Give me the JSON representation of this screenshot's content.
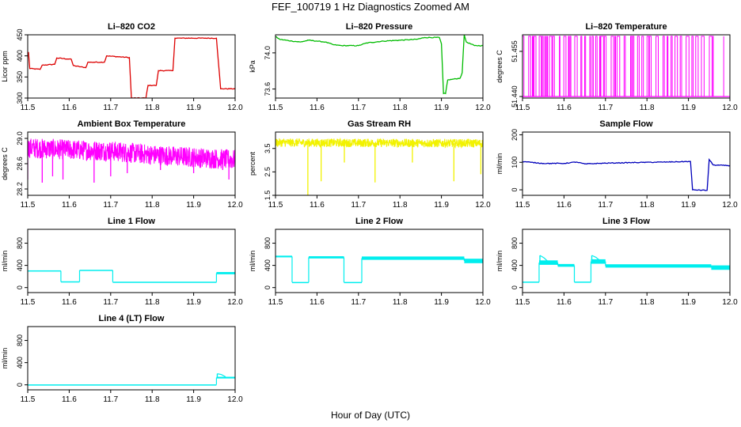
{
  "figure": {
    "title": "FEF_100719  1 Hz Diagnostics Zoomed AM",
    "xlabel": "Hour of Day (UTC)"
  },
  "colors": {
    "red": "#dd0000",
    "green": "#00bb00",
    "magenta": "#ff00ff",
    "yellow": "#f2f200",
    "blue": "#0000bb",
    "cyan": "#00eeee"
  },
  "chart_data": [
    {
      "id": "co2",
      "type": "line",
      "title": "Li–820 CO2",
      "ylabel": "Licor ppm",
      "color": "#dd0000",
      "xlim": [
        11.5,
        12.0
      ],
      "ylim": [
        300,
        450
      ],
      "xticks": [
        "11.5",
        "11.6",
        "11.7",
        "11.8",
        "11.9",
        "12.0"
      ],
      "yticks": [
        {
          "v": 300,
          "t": "300"
        },
        {
          "v": 350,
          "t": "350"
        },
        {
          "v": 400,
          "t": "400"
        },
        {
          "v": 450,
          "t": "450"
        }
      ],
      "segments": [
        [
          11.5,
          408
        ],
        [
          11.502,
          408
        ],
        [
          11.505,
          370
        ],
        [
          11.53,
          368
        ],
        [
          11.535,
          378
        ],
        [
          11.565,
          380
        ],
        [
          11.57,
          395
        ],
        [
          11.605,
          392
        ],
        [
          11.61,
          377
        ],
        [
          11.64,
          372
        ],
        [
          11.645,
          385
        ],
        [
          11.685,
          385
        ],
        [
          11.69,
          400
        ],
        [
          11.745,
          396
        ],
        [
          11.75,
          300
        ],
        [
          11.785,
          300
        ],
        [
          11.79,
          330
        ],
        [
          11.81,
          330
        ],
        [
          11.815,
          365
        ],
        [
          11.85,
          365
        ],
        [
          11.855,
          442
        ],
        [
          11.955,
          442
        ],
        [
          11.965,
          322
        ],
        [
          12.0,
          322
        ]
      ]
    },
    {
      "id": "pressure",
      "type": "line",
      "title": "Li–820 Pressure",
      "ylabel": "kPa",
      "color": "#00bb00",
      "xlim": [
        11.5,
        12.0
      ],
      "ylim": [
        73.5,
        74.2
      ],
      "xticks": [
        "11.5",
        "11.6",
        "11.7",
        "11.8",
        "11.9",
        "12.0"
      ],
      "yticks": [
        {
          "v": 73.6,
          "t": "73.6"
        },
        {
          "v": 74.0,
          "t": "74.0"
        }
      ],
      "segments": [
        [
          11.5,
          74.18
        ],
        [
          11.51,
          74.15
        ],
        [
          11.54,
          74.13
        ],
        [
          11.56,
          74.12
        ],
        [
          11.58,
          74.14
        ],
        [
          11.6,
          74.13
        ],
        [
          11.62,
          74.12
        ],
        [
          11.64,
          74.09
        ],
        [
          11.66,
          74.08
        ],
        [
          11.7,
          74.08
        ],
        [
          11.72,
          74.11
        ],
        [
          11.76,
          74.13
        ],
        [
          11.8,
          74.14
        ],
        [
          11.84,
          74.15
        ],
        [
          11.86,
          74.17
        ],
        [
          11.895,
          74.17
        ],
        [
          11.9,
          74.1
        ],
        [
          11.905,
          73.55
        ],
        [
          11.91,
          73.55
        ],
        [
          11.915,
          73.7
        ],
        [
          11.945,
          73.72
        ],
        [
          11.95,
          73.78
        ],
        [
          11.955,
          74.2
        ],
        [
          11.96,
          74.12
        ],
        [
          11.98,
          74.08
        ],
        [
          12.0,
          74.08
        ]
      ]
    },
    {
      "id": "licor-temp",
      "type": "spikes",
      "title": "Li–820 Temperature",
      "ylabel": "degrees C",
      "color": "#ff00ff",
      "xlim": [
        11.5,
        12.0
      ],
      "ylim": [
        51.4395,
        51.4605
      ],
      "xticks": [
        "11.5",
        "11.6",
        "11.7",
        "11.8",
        "11.9",
        "12.0"
      ],
      "yticks": [
        {
          "v": 51.44,
          "t": "51.440"
        },
        {
          "v": 51.455,
          "t": "51.455"
        }
      ],
      "base": 51.44,
      "top": 51.46,
      "pattern_range": [
        11.5,
        11.96
      ],
      "extra_spikes": [
        11.985
      ]
    },
    {
      "id": "ambient-temp",
      "type": "noise",
      "title": "Ambient Box Temperature",
      "ylabel": "degrees C",
      "color": "#ff00ff",
      "xlim": [
        11.5,
        12.0
      ],
      "ylim": [
        28.1,
        29.1
      ],
      "xticks": [
        "11.5",
        "11.6",
        "11.7",
        "11.8",
        "11.9",
        "12.0"
      ],
      "yticks": [
        {
          "v": 28.2,
          "t": "28.2"
        },
        {
          "v": 28.6,
          "t": "28.6"
        },
        {
          "v": 29.0,
          "t": "29.0"
        }
      ],
      "trend": [
        [
          11.5,
          28.85
        ],
        [
          11.6,
          28.82
        ],
        [
          11.7,
          28.8
        ],
        [
          11.8,
          28.74
        ],
        [
          11.9,
          28.7
        ],
        [
          12.0,
          28.66
        ]
      ],
      "amp": 0.16,
      "dips": [
        [
          11.535,
          28.3
        ],
        [
          11.56,
          28.4
        ],
        [
          11.585,
          28.35
        ],
        [
          11.66,
          28.3
        ],
        [
          11.7,
          28.4
        ],
        [
          11.74,
          28.45
        ],
        [
          11.82,
          28.5
        ],
        [
          11.9,
          28.45
        ],
        [
          11.97,
          28.5
        ],
        [
          11.985,
          28.35
        ],
        [
          11.5,
          28.35
        ]
      ]
    },
    {
      "id": "rh",
      "type": "noise",
      "title": "Gas Stream RH",
      "ylabel": "percent",
      "color": "#f2f200",
      "xlim": [
        11.5,
        12.0
      ],
      "ylim": [
        1.5,
        4.2
      ],
      "xticks": [
        "11.5",
        "11.6",
        "11.7",
        "11.8",
        "11.9",
        "12.0"
      ],
      "yticks": [
        {
          "v": 1.5,
          "t": "1.5"
        },
        {
          "v": 2.5,
          "t": "2.5"
        },
        {
          "v": 3.5,
          "t": "3.5"
        }
      ],
      "trend": [
        [
          11.5,
          3.75
        ],
        [
          12.0,
          3.72
        ]
      ],
      "amp": 0.18,
      "dips": [
        [
          11.578,
          1.5
        ],
        [
          11.61,
          2.1
        ],
        [
          11.666,
          2.9
        ],
        [
          11.74,
          2.05
        ],
        [
          11.93,
          2.1
        ],
        [
          11.83,
          2.9
        ],
        [
          11.995,
          2.4
        ]
      ]
    },
    {
      "id": "sample-flow",
      "type": "line",
      "title": "Sample Flow",
      "ylabel": "ml/min",
      "color": "#0000bb",
      "xlim": [
        11.5,
        12.0
      ],
      "ylim": [
        -20,
        210
      ],
      "xticks": [
        "11.5",
        "11.6",
        "11.7",
        "11.8",
        "11.9",
        "12.0"
      ],
      "yticks": [
        {
          "v": 0,
          "t": "0"
        },
        {
          "v": 100,
          "t": "100"
        },
        {
          "v": 200,
          "t": "200"
        }
      ],
      "segments": [
        [
          11.5,
          103
        ],
        [
          11.52,
          100
        ],
        [
          11.55,
          96
        ],
        [
          11.6,
          96
        ],
        [
          11.63,
          101
        ],
        [
          11.65,
          94
        ],
        [
          11.7,
          97
        ],
        [
          11.8,
          100
        ],
        [
          11.85,
          101
        ],
        [
          11.905,
          103
        ],
        [
          11.91,
          0
        ],
        [
          11.945,
          -2
        ],
        [
          11.95,
          110
        ],
        [
          11.96,
          90
        ],
        [
          12.0,
          88
        ]
      ]
    },
    {
      "id": "line1-flow",
      "type": "band",
      "title": "Line 1 Flow",
      "ylabel": "ml/min",
      "color": "#00eeee",
      "xlim": [
        11.5,
        12.0
      ],
      "ylim": [
        -90,
        1050
      ],
      "xticks": [
        "11.5",
        "11.6",
        "11.7",
        "11.8",
        "11.9",
        "12.0"
      ],
      "yticks": [
        {
          "v": 0,
          "t": "0"
        },
        {
          "v": 400,
          "t": "400"
        },
        {
          "v": 800,
          "t": "800"
        }
      ],
      "steps": [
        [
          11.5,
          11.58,
          300,
          10
        ],
        [
          11.58,
          11.625,
          105,
          8
        ],
        [
          11.625,
          11.705,
          310,
          10
        ],
        [
          11.705,
          11.955,
          100,
          6
        ],
        [
          11.955,
          12.0,
          260,
          20
        ]
      ]
    },
    {
      "id": "line2-flow",
      "type": "band",
      "title": "Line 2 Flow",
      "ylabel": "ml/min",
      "color": "#00eeee",
      "xlim": [
        11.5,
        12.0
      ],
      "ylim": [
        -90,
        1050
      ],
      "xticks": [
        "11.5",
        "11.6",
        "11.7",
        "11.8",
        "11.9",
        "12.0"
      ],
      "yticks": [
        {
          "v": 0,
          "t": "0"
        },
        {
          "v": 400,
          "t": "400"
        },
        {
          "v": 800,
          "t": "800"
        }
      ],
      "steps": [
        [
          11.5,
          11.54,
          560,
          15
        ],
        [
          11.54,
          11.58,
          95,
          6
        ],
        [
          11.58,
          11.665,
          545,
          20
        ],
        [
          11.665,
          11.708,
          95,
          6
        ],
        [
          11.708,
          11.955,
          530,
          30
        ],
        [
          11.955,
          12.0,
          480,
          40
        ]
      ]
    },
    {
      "id": "line3-flow",
      "type": "band",
      "title": "Line 3 Flow",
      "ylabel": "ml/min",
      "color": "#00eeee",
      "xlim": [
        11.5,
        12.0
      ],
      "ylim": [
        -90,
        1050
      ],
      "xticks": [
        "11.5",
        "11.6",
        "11.7",
        "11.8",
        "11.9",
        "12.0"
      ],
      "yticks": [
        {
          "v": 0,
          "t": "0"
        },
        {
          "v": 400,
          "t": "400"
        },
        {
          "v": 800,
          "t": "800"
        }
      ],
      "steps": [
        [
          11.5,
          11.54,
          100,
          8
        ],
        [
          11.54,
          11.585,
          450,
          40
        ],
        [
          11.585,
          11.625,
          400,
          25
        ],
        [
          11.625,
          11.665,
          100,
          8
        ],
        [
          11.665,
          11.7,
          470,
          40
        ],
        [
          11.7,
          11.955,
          390,
          30
        ],
        [
          11.955,
          12.0,
          360,
          40
        ]
      ],
      "overshoots": [
        [
          11.542,
          580
        ],
        [
          11.667,
          580
        ]
      ]
    },
    {
      "id": "line4-flow",
      "type": "band",
      "title": "Line 4 (LT) Flow",
      "ylabel": "ml/min",
      "color": "#00eeee",
      "xlim": [
        11.5,
        12.0
      ],
      "ylim": [
        -90,
        1050
      ],
      "xticks": [
        "11.5",
        "11.6",
        "11.7",
        "11.8",
        "11.9",
        "12.0"
      ],
      "yticks": [
        {
          "v": 0,
          "t": "0"
        },
        {
          "v": 400,
          "t": "400"
        },
        {
          "v": 800,
          "t": "800"
        }
      ],
      "steps": [
        [
          11.5,
          11.955,
          5,
          3
        ],
        [
          11.955,
          12.0,
          130,
          15
        ]
      ],
      "overshoots": [
        [
          11.957,
          200
        ]
      ]
    }
  ]
}
